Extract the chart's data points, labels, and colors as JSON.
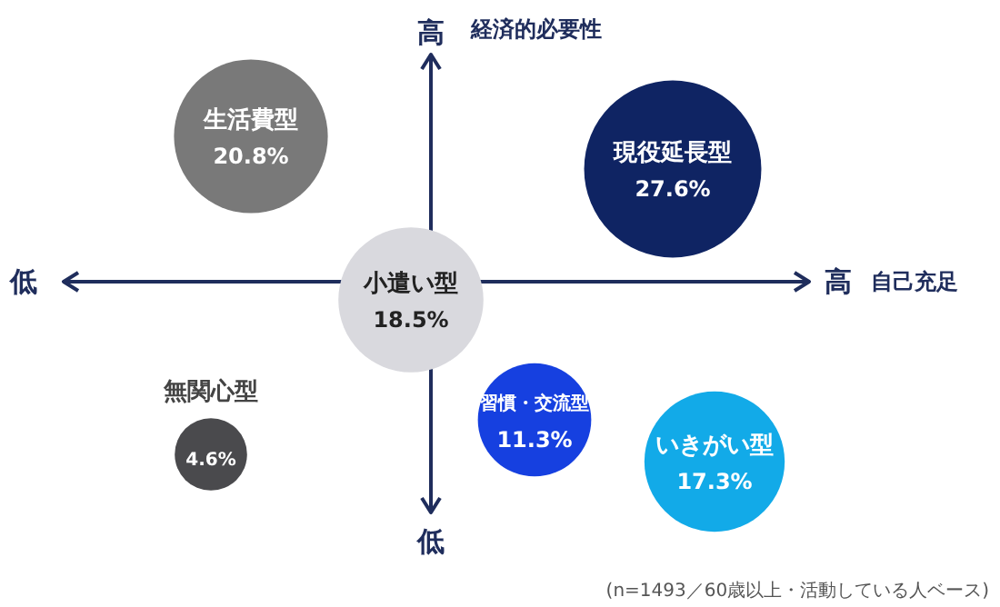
{
  "chart_data": {
    "type": "other",
    "xlabel": "自己充足",
    "ylabel": "経済的必要性",
    "categories": [
      "生活費型",
      "現役延長型",
      "小遣い型",
      "無関心型",
      "習慣・交流型",
      "いきがい型"
    ],
    "values": [
      20.8,
      27.6,
      18.5,
      4.6,
      11.3,
      17.3
    ],
    "value_labels": [
      "20.8%",
      "27.6%",
      "18.5%",
      "4.6%",
      "11.3%",
      "17.3%"
    ],
    "colors": [
      "#797979",
      "#0f2463",
      "#d9d9de",
      "#4a4a4d",
      "#1640e0",
      "#12aae8"
    ],
    "annotations": [
      "低",
      "高",
      "高",
      "低",
      "(n=1493／60歳以上・活動している人ベース)"
    ]
  }
}
